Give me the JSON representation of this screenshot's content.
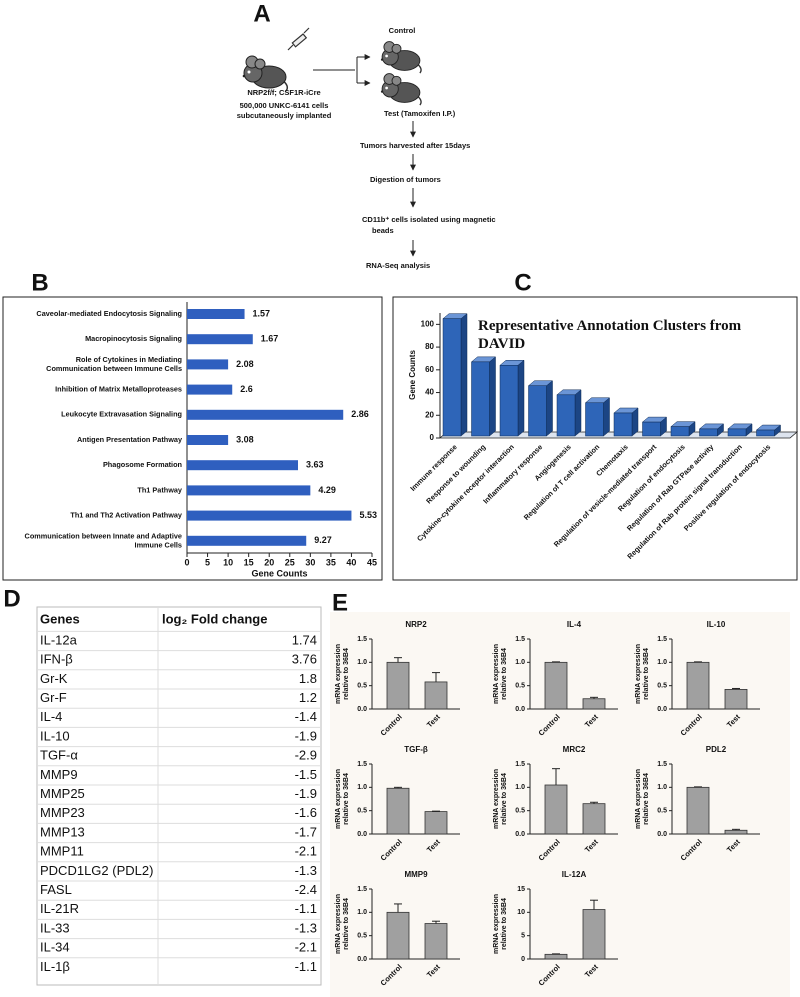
{
  "panel_labels": [
    "A",
    "B",
    "C",
    "D",
    "E"
  ],
  "diagram": {
    "strain": "NRP2f/f; CSF1R-iCre",
    "implant": [
      "500,000 UNKC-6141 cells",
      "subcutaneously implanted"
    ],
    "control": "Control",
    "test": "Test (Tamoxifen I.P.)",
    "steps": [
      [
        "Tumors harvested after 15days"
      ],
      [
        "Digestion of tumors"
      ],
      [
        "CD11b⁺ cells isolated using magnetic",
        "beads"
      ],
      [
        "RNA-Seq analysis"
      ]
    ]
  },
  "chart_data": [
    {
      "type": "hbar",
      "xlabel": "Gene Counts",
      "categories": [
        "Caveolar-mediated Endocytosis Signaling",
        "Macropinocytosis Signaling",
        [
          "Role of Cytokines in Mediating",
          "Communication between Immune Cells"
        ],
        "Inhibition of Matrix Metalloproteases",
        "Leukocyte Extravasation Signaling",
        "Antigen Presentation Pathway",
        "Phagosome Formation",
        "Th1 Pathway",
        "Th1 and Th2 Activation Pathway",
        [
          "Communication between Innate and Adaptive",
          "Immune Cells"
        ]
      ],
      "values": [
        14,
        16,
        10,
        11,
        38,
        10,
        27,
        30,
        40,
        29
      ],
      "bar_labels": [
        1.57,
        1.67,
        2.08,
        2.6,
        2.86,
        3.08,
        3.63,
        4.29,
        5.53,
        9.27
      ],
      "color": "#2f5fbf",
      "xlim": [
        0,
        45
      ],
      "xticks": [
        0,
        5,
        10,
        15,
        20,
        25,
        30,
        35,
        40,
        45
      ]
    },
    {
      "type": "bar3d",
      "title": [
        "Representative Annotation Clusters from",
        "DAVID"
      ],
      "ylabel": "Gene Counts",
      "categories": [
        "Immune response",
        "Response to wounding",
        "Cytokine-cytokine receptor interaction",
        "Inflammatory response",
        "Angiogenesis",
        "Regulation of T cell activation",
        "Chemotaxis",
        "Regulation of vesicle-mediated transport",
        "Regulation of endocytosis",
        "Regulation of Rab GTPase activity",
        "Regulation of Rab protein signal transduction",
        "Positive regulation of endocytosis"
      ],
      "values": [
        105,
        67,
        64,
        46,
        38,
        31,
        22,
        14,
        10,
        8,
        8,
        7
      ],
      "color": "#2e65b8",
      "ylim": [
        0,
        110
      ],
      "yticks": [
        0,
        20,
        40,
        60,
        80,
        100
      ]
    },
    {
      "type": "bar",
      "title": "NRP2",
      "ylabel": [
        "mRNA expression",
        "relative to 36B4"
      ],
      "categories": [
        "Control",
        "Test"
      ],
      "values": [
        1.0,
        0.58
      ],
      "errors": [
        0.1,
        0.2
      ],
      "color": "#a0a0a0",
      "ylim": [
        0,
        1.5
      ],
      "yticks": [
        {
          "value": 0,
          "label": "0.0"
        },
        {
          "value": 0.5,
          "label": "0.5"
        },
        {
          "value": 1,
          "label": "1.0"
        },
        {
          "value": 1.5,
          "label": "1.5"
        }
      ]
    },
    {
      "type": "bar",
      "title": "IL-4",
      "ylabel": [
        "mRNA expression",
        "relative to 36B4"
      ],
      "categories": [
        "Control",
        "Test"
      ],
      "values": [
        1.0,
        0.22
      ],
      "errors": [
        0.01,
        0.03
      ],
      "color": "#a0a0a0",
      "ylim": [
        0,
        1.5
      ],
      "yticks": [
        {
          "value": 0,
          "label": "0.0"
        },
        {
          "value": 0.5,
          "label": "0.5"
        },
        {
          "value": 1,
          "label": "1.0"
        },
        {
          "value": 1.5,
          "label": "1.5"
        }
      ]
    },
    {
      "type": "bar",
      "title": "IL-10",
      "ylabel": [
        "mRNA expression",
        "relative to 36B4"
      ],
      "categories": [
        "Control",
        "Test"
      ],
      "values": [
        1.0,
        0.42
      ],
      "errors": [
        0.01,
        0.02
      ],
      "color": "#a0a0a0",
      "ylim": [
        0,
        1.5
      ],
      "yticks": [
        {
          "value": 0,
          "label": "0.0"
        },
        {
          "value": 0.5,
          "label": "0.5"
        },
        {
          "value": 1,
          "label": "1.0"
        },
        {
          "value": 1.5,
          "label": "1.5"
        }
      ]
    },
    {
      "type": "bar",
      "title": "TGF-β",
      "ylabel": [
        "mRNA expression",
        "relative to 36B4"
      ],
      "categories": [
        "Control",
        "Test"
      ],
      "values": [
        0.98,
        0.48
      ],
      "errors": [
        0.02,
        0.01
      ],
      "color": "#a0a0a0",
      "ylim": [
        0,
        1.5
      ],
      "yticks": [
        {
          "value": 0,
          "label": "0.0"
        },
        {
          "value": 0.5,
          "label": "0.5"
        },
        {
          "value": 1,
          "label": "1.0"
        },
        {
          "value": 1.5,
          "label": "1.5"
        }
      ]
    },
    {
      "type": "bar",
      "title": "MRC2",
      "ylabel": [
        "mRNA expression",
        "relative to 36B4"
      ],
      "categories": [
        "Control",
        "Test"
      ],
      "values": [
        1.05,
        0.65
      ],
      "errors": [
        0.35,
        0.03
      ],
      "color": "#a0a0a0",
      "ylim": [
        0,
        1.5
      ],
      "yticks": [
        {
          "value": 0,
          "label": "0.0"
        },
        {
          "value": 0.5,
          "label": "0.5"
        },
        {
          "value": 1,
          "label": "1.0"
        },
        {
          "value": 1.5,
          "label": "1.5"
        }
      ]
    },
    {
      "type": "bar",
      "title": "PDL2",
      "ylabel": [
        "mRNA expression",
        "relative to 36B4"
      ],
      "categories": [
        "Control",
        "Test"
      ],
      "values": [
        1.0,
        0.08
      ],
      "errors": [
        0.01,
        0.02
      ],
      "color": "#a0a0a0",
      "ylim": [
        0,
        1.5
      ],
      "yticks": [
        {
          "value": 0,
          "label": "0.0"
        },
        {
          "value": 0.5,
          "label": "0.5"
        },
        {
          "value": 1,
          "label": "1.0"
        },
        {
          "value": 1.5,
          "label": "1.5"
        }
      ]
    },
    {
      "type": "bar",
      "title": "MMP9",
      "ylabel": [
        "mRNA expression",
        "relative to 36B4"
      ],
      "categories": [
        "Control",
        "Test"
      ],
      "values": [
        1.0,
        0.76
      ],
      "errors": [
        0.18,
        0.05
      ],
      "color": "#a0a0a0",
      "ylim": [
        0,
        1.5
      ],
      "yticks": [
        {
          "value": 0,
          "label": "0.0"
        },
        {
          "value": 0.5,
          "label": "0.5"
        },
        {
          "value": 1,
          "label": "1.0"
        },
        {
          "value": 1.5,
          "label": "1.5"
        }
      ]
    },
    {
      "type": "bar",
      "title": "IL-12A",
      "ylabel": [
        "mRNA expression",
        "relative to 36B4"
      ],
      "categories": [
        "Control",
        "Test"
      ],
      "values": [
        1,
        10.6
      ],
      "errors": [
        0.1,
        2
      ],
      "color": "#a0a0a0",
      "ylim": [
        0,
        15
      ],
      "yticks": [
        0,
        5,
        10,
        15
      ]
    }
  ],
  "table": {
    "header": [
      "Genes",
      "log₂ Fold change"
    ],
    "rows": [
      [
        "IL-12a",
        1.74
      ],
      [
        "IFN-β",
        3.76
      ],
      [
        "Gr-K",
        1.8
      ],
      [
        "Gr-F",
        1.2
      ],
      [
        "IL-4",
        -1.4
      ],
      [
        "IL-10",
        -1.9
      ],
      [
        "TGF-α",
        -2.9
      ],
      [
        "MMP9",
        -1.5
      ],
      [
        "MMP25",
        -1.9
      ],
      [
        "MMP23",
        -1.6
      ],
      [
        "MMP13",
        -1.7
      ],
      [
        "MMP11",
        -2.1
      ],
      [
        "PDCD1LG2 (PDL2)",
        -1.3
      ],
      [
        "FASL",
        -2.4
      ],
      [
        "IL-21R",
        -1.1
      ],
      [
        "IL-33",
        -1.3
      ],
      [
        "IL-34",
        -2.1
      ],
      [
        "IL-1β",
        -1.1
      ]
    ]
  }
}
